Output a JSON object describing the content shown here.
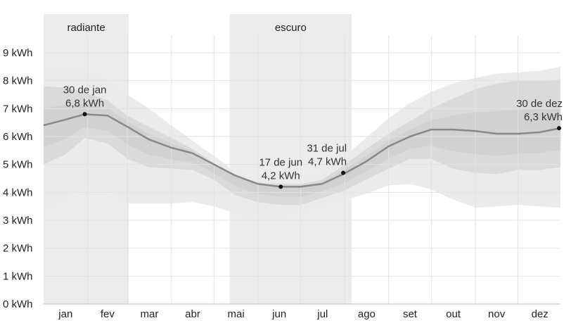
{
  "chart_data": {
    "type": "area",
    "title": "",
    "xlabel": "",
    "ylabel": "",
    "y_unit": "kWh",
    "ylim": [
      0,
      9
    ],
    "y_ticks": [
      {
        "value": 0,
        "label": "0 kWh"
      },
      {
        "value": 1,
        "label": "1 kWh"
      },
      {
        "value": 2,
        "label": "2 kWh"
      },
      {
        "value": 3,
        "label": "3 kWh"
      },
      {
        "value": 4,
        "label": "4 kWh"
      },
      {
        "value": 5,
        "label": "5 kWh"
      },
      {
        "value": 6,
        "label": "6 kWh"
      },
      {
        "value": 7,
        "label": "7 kWh"
      },
      {
        "value": 8,
        "label": "8 kWh"
      },
      {
        "value": 9,
        "label": "9 kWh"
      }
    ],
    "months": [
      "jan",
      "fev",
      "mar",
      "abr",
      "mai",
      "jun",
      "jul",
      "ago",
      "set",
      "out",
      "nov",
      "dez"
    ],
    "grid": true,
    "seasons": [
      {
        "label": "radiante",
        "start_day": 1,
        "end_day": 61
      },
      {
        "label": "escuro",
        "start_day": 132,
        "end_day": 218
      }
    ],
    "x_days": [
      1,
      16,
      30,
      46,
      60,
      75,
      91,
      106,
      121,
      136,
      152,
      168,
      182,
      197,
      212,
      228,
      244,
      259,
      274,
      289,
      305,
      320,
      335,
      350,
      365
    ],
    "mean": [
      6.4,
      6.6,
      6.8,
      6.75,
      6.35,
      5.9,
      5.6,
      5.4,
      5.0,
      4.6,
      4.3,
      4.2,
      4.2,
      4.3,
      4.65,
      5.1,
      5.65,
      6.0,
      6.25,
      6.25,
      6.2,
      6.1,
      6.1,
      6.15,
      6.3
    ],
    "band_25_75": {
      "low": [
        5.0,
        5.35,
        5.95,
        5.75,
        5.2,
        4.9,
        4.85,
        4.8,
        4.45,
        3.9,
        3.65,
        3.55,
        3.55,
        3.8,
        4.05,
        4.45,
        4.85,
        5.2,
        5.2,
        4.85,
        4.7,
        4.65,
        4.8,
        4.8,
        4.9
      ],
      "high": [
        7.8,
        7.75,
        7.6,
        7.3,
        6.75,
        6.35,
        5.95,
        5.55,
        5.05,
        4.6,
        4.35,
        4.3,
        4.3,
        4.45,
        4.95,
        5.55,
        6.1,
        6.55,
        7.0,
        7.35,
        7.7,
        7.9,
        8.0,
        8.0,
        8.05
      ]
    },
    "band_10_90": {
      "low": [
        3.5,
        3.7,
        4.2,
        4.05,
        3.6,
        3.6,
        3.6,
        3.65,
        3.5,
        3.25,
        3.1,
        3.1,
        3.3,
        3.55,
        3.7,
        3.95,
        4.25,
        4.3,
        4.1,
        3.75,
        3.45,
        3.5,
        3.55,
        3.5,
        3.45
      ],
      "high": [
        8.5,
        8.5,
        8.4,
        8.05,
        7.5,
        7.0,
        6.4,
        5.85,
        5.3,
        4.75,
        4.45,
        4.4,
        4.45,
        4.65,
        5.25,
        5.95,
        6.65,
        7.2,
        7.6,
        7.9,
        8.1,
        8.25,
        8.3,
        8.35,
        8.5
      ]
    },
    "annotations": [
      {
        "day": 30,
        "value": 6.8,
        "date_label": "30 de jan",
        "value_label": "6,8 kWh",
        "anchor": "middle"
      },
      {
        "day": 168,
        "value": 4.2,
        "date_label": "17 de jun",
        "value_label": "4,2 kWh",
        "anchor": "middle"
      },
      {
        "day": 212,
        "value": 4.7,
        "date_label": "31 de jul",
        "value_label": "4,7 kWh",
        "anchor": "end"
      },
      {
        "day": 364,
        "value": 6.3,
        "date_label": "30 de dez",
        "value_label": "6,3 kWh",
        "anchor": "end"
      }
    ],
    "colors": {
      "season_shade": "#ececec",
      "band_outer": "#ebebeb",
      "band_middle": "#dadada",
      "band_inner": "#cbcbcb",
      "mean_line": "#888888",
      "marker": "#111111",
      "grid": "#e2e2e2",
      "text": "#222222"
    }
  }
}
